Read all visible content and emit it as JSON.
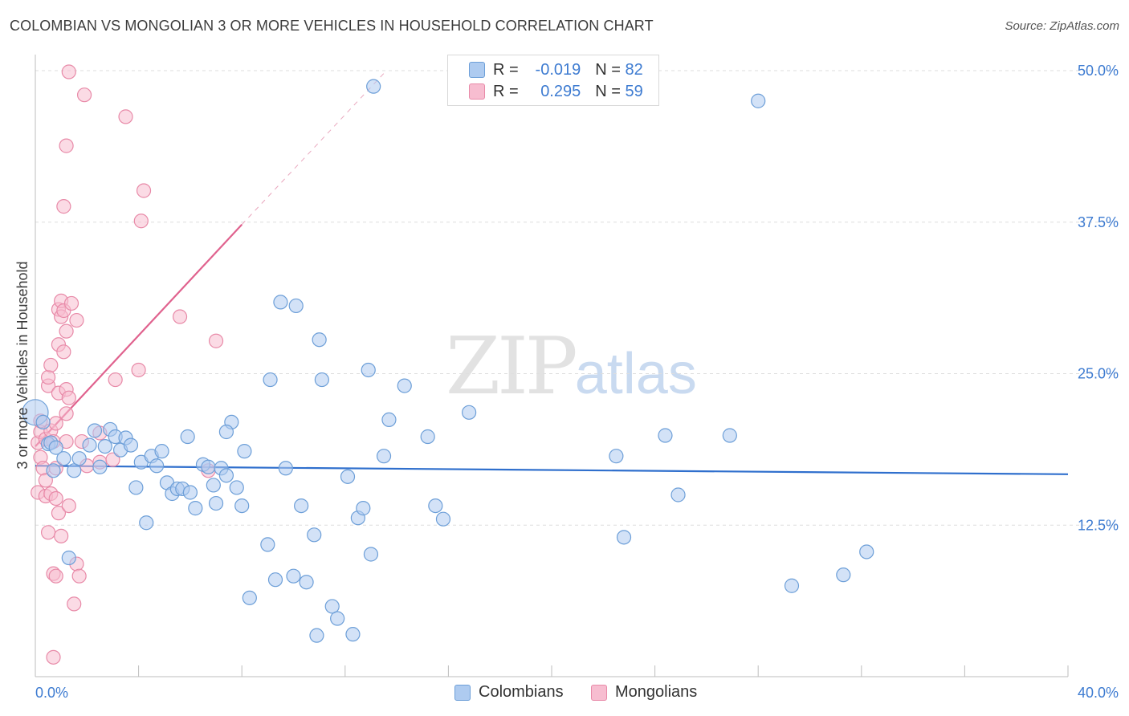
{
  "header": {
    "title": "COLOMBIAN VS MONGOLIAN 3 OR MORE VEHICLES IN HOUSEHOLD CORRELATION CHART",
    "source": "Source: ZipAtlas.com"
  },
  "watermark": {
    "zip": "ZIP",
    "atlas": "atlas"
  },
  "legend": {
    "r_label": "R =",
    "n_label": "N =",
    "colombians": {
      "r": "-0.019",
      "n": "82"
    },
    "mongolians": {
      "r": "0.295",
      "n": "59"
    }
  },
  "bottom_legend": {
    "colombians": "Colombians",
    "mongolians": "Mongolians"
  },
  "colors": {
    "colombians_fill": "#aecbf0",
    "colombians_stroke": "#6d9fd8",
    "colombians_line": "#2f6fcd",
    "mongolians_fill": "#f7bdd0",
    "mongolians_stroke": "#e88aa8",
    "mongolians_line": "#e0628e",
    "axis_label": "#3d7bd1"
  },
  "chart_data": {
    "type": "scatter",
    "title": "COLOMBIAN VS MONGOLIAN 3 OR MORE VEHICLES IN HOUSEHOLD CORRELATION CHART",
    "xlabel": "",
    "ylabel": "3 or more Vehicles in Household",
    "xlim": [
      0,
      40
    ],
    "ylim": [
      0,
      50
    ],
    "x_tick_labels": [
      "0.0%",
      "40.0%"
    ],
    "y_ticks": [
      12.5,
      25.0,
      37.5,
      50.0
    ],
    "y_tick_labels": [
      "12.5%",
      "25.0%",
      "37.5%",
      "50.0%"
    ],
    "grid": "horizontal dashed",
    "series": [
      {
        "name": "Colombians",
        "points": [
          [
            0.0,
            21.8
          ],
          [
            0.3,
            21.0
          ],
          [
            0.5,
            19.2
          ],
          [
            0.6,
            19.3
          ],
          [
            0.7,
            17.0
          ],
          [
            0.8,
            18.9
          ],
          [
            1.1,
            18.0
          ],
          [
            1.3,
            9.8
          ],
          [
            1.5,
            17.0
          ],
          [
            1.7,
            18.0
          ],
          [
            2.1,
            19.1
          ],
          [
            2.3,
            20.3
          ],
          [
            2.5,
            17.3
          ],
          [
            2.7,
            19.0
          ],
          [
            2.9,
            20.4
          ],
          [
            3.1,
            19.8
          ],
          [
            3.3,
            18.7
          ],
          [
            3.5,
            19.7
          ],
          [
            3.7,
            19.1
          ],
          [
            3.9,
            15.6
          ],
          [
            4.1,
            17.7
          ],
          [
            4.3,
            12.7
          ],
          [
            4.5,
            18.2
          ],
          [
            4.7,
            17.4
          ],
          [
            4.9,
            18.6
          ],
          [
            5.1,
            16.0
          ],
          [
            5.3,
            15.1
          ],
          [
            5.5,
            15.5
          ],
          [
            5.7,
            15.5
          ],
          [
            5.9,
            19.8
          ],
          [
            6.0,
            15.2
          ],
          [
            6.2,
            13.9
          ],
          [
            6.5,
            17.5
          ],
          [
            6.7,
            17.3
          ],
          [
            6.9,
            15.8
          ],
          [
            7.0,
            14.3
          ],
          [
            7.2,
            17.2
          ],
          [
            7.4,
            16.6
          ],
          [
            7.6,
            21.0
          ],
          [
            7.8,
            15.6
          ],
          [
            7.4,
            20.2
          ],
          [
            8.0,
            14.1
          ],
          [
            8.1,
            18.6
          ],
          [
            8.3,
            6.5
          ],
          [
            9.0,
            10.9
          ],
          [
            9.1,
            24.5
          ],
          [
            9.3,
            8.0
          ],
          [
            9.5,
            30.9
          ],
          [
            9.7,
            17.2
          ],
          [
            10.0,
            8.3
          ],
          [
            10.1,
            30.6
          ],
          [
            10.3,
            14.1
          ],
          [
            10.5,
            7.8
          ],
          [
            10.8,
            11.7
          ],
          [
            10.9,
            3.4
          ],
          [
            11.0,
            27.8
          ],
          [
            11.1,
            24.5
          ],
          [
            11.5,
            5.8
          ],
          [
            11.7,
            4.8
          ],
          [
            12.1,
            16.5
          ],
          [
            12.3,
            3.5
          ],
          [
            12.5,
            13.1
          ],
          [
            12.7,
            13.9
          ],
          [
            12.9,
            25.3
          ],
          [
            13.0,
            10.1
          ],
          [
            13.1,
            48.7
          ],
          [
            13.5,
            18.2
          ],
          [
            13.7,
            21.2
          ],
          [
            14.3,
            24.0
          ],
          [
            15.2,
            19.8
          ],
          [
            15.5,
            14.1
          ],
          [
            15.8,
            13.0
          ],
          [
            16.8,
            21.8
          ],
          [
            22.5,
            18.2
          ],
          [
            22.8,
            11.5
          ],
          [
            24.4,
            19.9
          ],
          [
            24.9,
            15.0
          ],
          [
            26.9,
            19.9
          ],
          [
            28.0,
            47.5
          ],
          [
            29.3,
            7.5
          ],
          [
            31.3,
            8.4
          ],
          [
            32.2,
            10.3
          ]
        ]
      },
      {
        "name": "Mongolians",
        "points": [
          [
            0.1,
            19.3
          ],
          [
            0.1,
            15.2
          ],
          [
            0.2,
            18.1
          ],
          [
            0.2,
            20.2
          ],
          [
            0.2,
            21.1
          ],
          [
            0.3,
            17.2
          ],
          [
            0.4,
            19.6
          ],
          [
            0.4,
            14.9
          ],
          [
            0.4,
            16.2
          ],
          [
            0.5,
            24.0
          ],
          [
            0.5,
            24.7
          ],
          [
            0.5,
            11.9
          ],
          [
            0.6,
            25.7
          ],
          [
            0.6,
            15.1
          ],
          [
            0.6,
            20.3
          ],
          [
            0.7,
            19.4
          ],
          [
            0.7,
            8.5
          ],
          [
            0.7,
            1.6
          ],
          [
            0.8,
            17.2
          ],
          [
            0.8,
            8.3
          ],
          [
            0.8,
            14.7
          ],
          [
            0.8,
            20.9
          ],
          [
            0.9,
            23.4
          ],
          [
            0.9,
            27.4
          ],
          [
            0.9,
            13.5
          ],
          [
            0.9,
            30.3
          ],
          [
            1.0,
            29.7
          ],
          [
            1.0,
            31.0
          ],
          [
            1.0,
            11.6
          ],
          [
            1.1,
            26.8
          ],
          [
            1.1,
            30.2
          ],
          [
            1.2,
            19.4
          ],
          [
            1.2,
            23.7
          ],
          [
            1.2,
            21.7
          ],
          [
            1.2,
            28.5
          ],
          [
            1.3,
            23.0
          ],
          [
            1.3,
            14.1
          ],
          [
            1.3,
            49.9
          ],
          [
            1.4,
            30.8
          ],
          [
            1.5,
            6.0
          ],
          [
            1.6,
            29.4
          ],
          [
            1.6,
            9.3
          ],
          [
            1.7,
            8.3
          ],
          [
            1.9,
            48.0
          ],
          [
            1.1,
            38.8
          ],
          [
            1.2,
            43.8
          ],
          [
            1.8,
            19.4
          ],
          [
            2.0,
            17.4
          ],
          [
            2.5,
            20.1
          ],
          [
            2.5,
            17.7
          ],
          [
            3.0,
            17.9
          ],
          [
            3.1,
            24.5
          ],
          [
            3.5,
            46.2
          ],
          [
            4.0,
            25.3
          ],
          [
            4.1,
            37.6
          ],
          [
            4.2,
            40.1
          ],
          [
            5.6,
            29.7
          ],
          [
            6.7,
            17.0
          ],
          [
            7.0,
            27.7
          ]
        ]
      }
    ],
    "trend_lines": [
      {
        "series": "Colombians",
        "from": [
          0,
          17.4
        ],
        "to": [
          40,
          16.7
        ],
        "style": "solid"
      },
      {
        "series": "Mongolians",
        "from": [
          0,
          19.0
        ],
        "to": [
          8.0,
          37.3
        ],
        "style": "solid"
      },
      {
        "series": "Mongolians",
        "from": [
          8.0,
          37.3
        ],
        "to": [
          13.6,
          50.0
        ],
        "style": "dashed"
      }
    ]
  }
}
